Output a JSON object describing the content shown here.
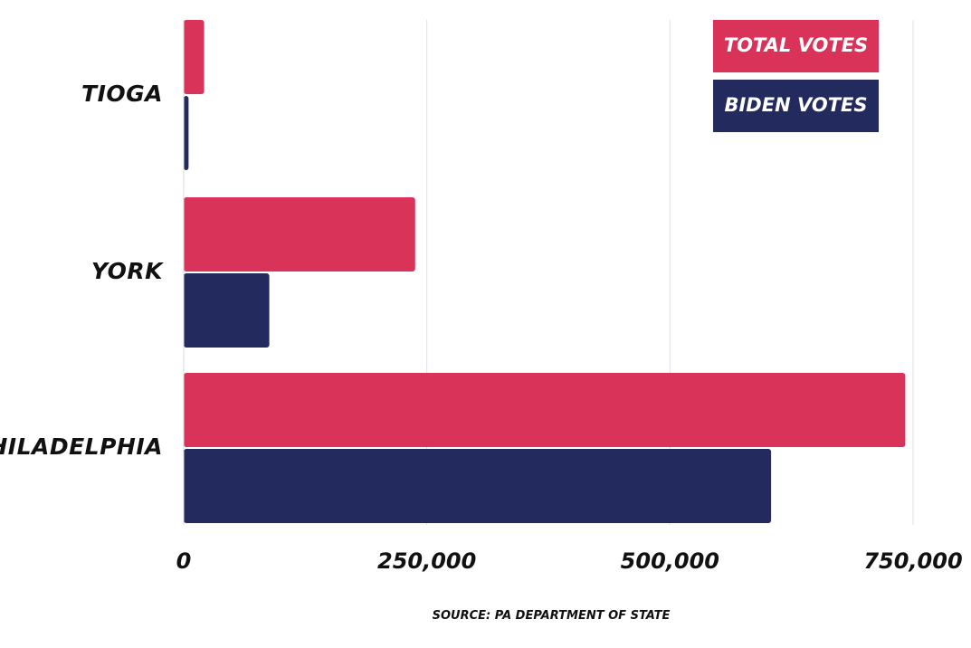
{
  "chart_data": {
    "type": "bar",
    "orientation": "horizontal",
    "categories": [
      "TIOGA",
      "YORK",
      "PHILADELPHIA"
    ],
    "series": [
      {
        "name": "TOTAL VOTES",
        "color": "#d9335a",
        "values": [
          21000,
          238000,
          742000
        ]
      },
      {
        "name": "BIDEN VOTES",
        "color": "#222a5e",
        "values": [
          5000,
          88000,
          604000
        ]
      }
    ],
    "xlim": [
      0,
      750000
    ],
    "x_ticks": [
      0,
      250000,
      500000,
      750000
    ],
    "x_tick_labels": [
      "0",
      "250,000",
      "500,000",
      "750,000"
    ],
    "grid": true,
    "legend_position": "top-right",
    "source": "SOURCE: PA DEPARTMENT OF STATE"
  }
}
